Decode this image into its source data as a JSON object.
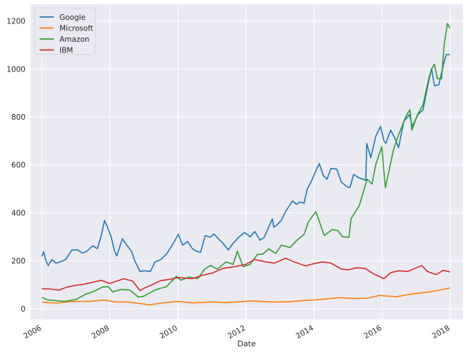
{
  "chart_data": {
    "type": "line",
    "title": "",
    "xlabel": "Date",
    "ylabel": "",
    "xlim": [
      "2005-09-01",
      "2018-05-15"
    ],
    "ylim": [
      -45,
      1270
    ],
    "x_ticks": [
      "2006",
      "2008",
      "2010",
      "2012",
      "2014",
      "2016",
      "2018"
    ],
    "y_ticks": [
      0,
      200,
      400,
      600,
      800,
      1000,
      1200
    ],
    "grid": true,
    "legend_position": "top-left",
    "series": [
      {
        "name": "Google",
        "color": "#1f77b4",
        "points": [
          [
            "2006-01-03",
            218
          ],
          [
            "2006-01-20",
            238
          ],
          [
            "2006-02-15",
            200
          ],
          [
            "2006-03-10",
            180
          ],
          [
            "2006-04-20",
            205
          ],
          [
            "2006-06-01",
            190
          ],
          [
            "2006-07-15",
            195
          ],
          [
            "2006-09-15",
            205
          ],
          [
            "2006-11-20",
            245
          ],
          [
            "2007-01-20",
            245
          ],
          [
            "2007-03-15",
            232
          ],
          [
            "2007-05-01",
            240
          ],
          [
            "2007-07-01",
            262
          ],
          [
            "2007-08-20",
            250
          ],
          [
            "2007-10-01",
            305
          ],
          [
            "2007-11-05",
            368
          ],
          [
            "2007-12-01",
            345
          ],
          [
            "2008-01-15",
            300
          ],
          [
            "2008-02-20",
            240
          ],
          [
            "2008-03-15",
            220
          ],
          [
            "2008-05-15",
            292
          ],
          [
            "2008-07-01",
            265
          ],
          [
            "2008-08-20",
            240
          ],
          [
            "2008-09-25",
            200
          ],
          [
            "2008-11-20",
            155
          ],
          [
            "2009-01-05",
            158
          ],
          [
            "2009-03-10",
            155
          ],
          [
            "2009-05-01",
            195
          ],
          [
            "2009-07-01",
            205
          ],
          [
            "2009-09-01",
            228
          ],
          [
            "2009-11-01",
            265
          ],
          [
            "2010-01-05",
            310
          ],
          [
            "2010-02-20",
            265
          ],
          [
            "2010-04-15",
            280
          ],
          [
            "2010-06-01",
            252
          ],
          [
            "2010-07-15",
            240
          ],
          [
            "2010-09-01",
            235
          ],
          [
            "2010-10-20",
            305
          ],
          [
            "2010-12-15",
            298
          ],
          [
            "2011-01-20",
            312
          ],
          [
            "2011-03-15",
            290
          ],
          [
            "2011-05-01",
            272
          ],
          [
            "2011-06-25",
            245
          ],
          [
            "2011-08-10",
            270
          ],
          [
            "2011-10-15",
            298
          ],
          [
            "2011-12-15",
            318
          ],
          [
            "2012-02-15",
            300
          ],
          [
            "2012-04-05",
            322
          ],
          [
            "2012-06-01",
            285
          ],
          [
            "2012-07-15",
            298
          ],
          [
            "2012-09-01",
            340
          ],
          [
            "2012-10-10",
            375
          ],
          [
            "2012-10-25",
            340
          ],
          [
            "2012-12-01",
            350
          ],
          [
            "2013-01-15",
            370
          ],
          [
            "2013-03-01",
            405
          ],
          [
            "2013-05-15",
            450
          ],
          [
            "2013-06-25",
            435
          ],
          [
            "2013-08-01",
            445
          ],
          [
            "2013-09-15",
            440
          ],
          [
            "2013-10-20",
            500
          ],
          [
            "2013-12-01",
            530
          ],
          [
            "2014-01-20",
            575
          ],
          [
            "2014-02-25",
            605
          ],
          [
            "2014-04-10",
            555
          ],
          [
            "2014-05-20",
            540
          ],
          [
            "2014-07-01",
            585
          ],
          [
            "2014-09-01",
            582
          ],
          [
            "2014-10-20",
            528
          ],
          [
            "2014-12-15",
            510
          ],
          [
            "2015-01-20",
            505
          ],
          [
            "2015-03-01",
            560
          ],
          [
            "2015-05-01",
            545
          ],
          [
            "2015-07-10",
            535
          ],
          [
            "2015-07-20",
            690
          ],
          [
            "2015-09-01",
            630
          ],
          [
            "2015-10-25",
            720
          ],
          [
            "2015-12-15",
            760
          ],
          [
            "2016-01-20",
            700
          ],
          [
            "2016-02-10",
            690
          ],
          [
            "2016-04-01",
            745
          ],
          [
            "2016-05-15",
            712
          ],
          [
            "2016-06-25",
            672
          ],
          [
            "2016-08-20",
            780
          ],
          [
            "2016-10-20",
            810
          ],
          [
            "2016-11-20",
            760
          ],
          [
            "2017-01-20",
            810
          ],
          [
            "2017-03-15",
            830
          ],
          [
            "2017-05-15",
            950
          ],
          [
            "2017-06-15",
            1000
          ],
          [
            "2017-07-15",
            930
          ],
          [
            "2017-09-01",
            935
          ],
          [
            "2017-10-27",
            1030
          ],
          [
            "2017-11-20",
            1060
          ],
          [
            "2017-12-29",
            1060
          ]
        ]
      },
      {
        "name": "Microsoft",
        "color": "#ff7f0e",
        "points": [
          [
            "2006-01-03",
            27
          ],
          [
            "2006-06-01",
            23
          ],
          [
            "2006-12-01",
            30
          ],
          [
            "2007-06-01",
            30
          ],
          [
            "2007-11-01",
            36
          ],
          [
            "2008-03-01",
            28
          ],
          [
            "2008-08-01",
            27
          ],
          [
            "2009-01-01",
            19
          ],
          [
            "2009-03-01",
            16
          ],
          [
            "2009-07-01",
            23
          ],
          [
            "2010-01-01",
            30
          ],
          [
            "2010-06-01",
            24
          ],
          [
            "2011-01-01",
            28
          ],
          [
            "2011-06-01",
            25
          ],
          [
            "2012-03-01",
            32
          ],
          [
            "2012-10-01",
            28
          ],
          [
            "2013-03-01",
            28
          ],
          [
            "2013-09-01",
            33
          ],
          [
            "2014-03-01",
            38
          ],
          [
            "2014-10-01",
            46
          ],
          [
            "2015-03-01",
            42
          ],
          [
            "2015-08-01",
            44
          ],
          [
            "2015-12-01",
            55
          ],
          [
            "2016-06-01",
            50
          ],
          [
            "2016-12-01",
            62
          ],
          [
            "2017-06-01",
            70
          ],
          [
            "2017-12-29",
            86
          ]
        ]
      },
      {
        "name": "Amazon",
        "color": "#2ca02c",
        "points": [
          [
            "2006-01-03",
            47
          ],
          [
            "2006-03-01",
            37
          ],
          [
            "2006-06-01",
            33
          ],
          [
            "2006-09-01",
            30
          ],
          [
            "2007-01-01",
            38
          ],
          [
            "2007-04-15",
            60
          ],
          [
            "2007-07-15",
            72
          ],
          [
            "2007-10-15",
            90
          ],
          [
            "2007-12-15",
            92
          ],
          [
            "2008-02-01",
            70
          ],
          [
            "2008-05-01",
            80
          ],
          [
            "2008-08-01",
            78
          ],
          [
            "2008-11-01",
            48
          ],
          [
            "2009-01-01",
            52
          ],
          [
            "2009-05-01",
            78
          ],
          [
            "2009-09-01",
            92
          ],
          [
            "2009-12-15",
            135
          ],
          [
            "2010-02-01",
            118
          ],
          [
            "2010-05-01",
            132
          ],
          [
            "2010-08-01",
            125
          ],
          [
            "2010-10-15",
            165
          ],
          [
            "2010-12-15",
            180
          ],
          [
            "2011-03-01",
            165
          ],
          [
            "2011-06-01",
            195
          ],
          [
            "2011-08-15",
            185
          ],
          [
            "2011-10-01",
            240
          ],
          [
            "2011-12-01",
            175
          ],
          [
            "2012-02-15",
            185
          ],
          [
            "2012-04-30",
            225
          ],
          [
            "2012-07-01",
            228
          ],
          [
            "2012-09-01",
            250
          ],
          [
            "2012-11-15",
            230
          ],
          [
            "2013-01-15",
            265
          ],
          [
            "2013-04-15",
            255
          ],
          [
            "2013-07-01",
            285
          ],
          [
            "2013-09-15",
            310
          ],
          [
            "2013-11-01",
            362
          ],
          [
            "2014-01-20",
            405
          ],
          [
            "2014-03-01",
            360
          ],
          [
            "2014-04-20",
            305
          ],
          [
            "2014-07-15",
            330
          ],
          [
            "2014-09-15",
            325
          ],
          [
            "2014-11-01",
            300
          ],
          [
            "2015-01-10",
            298
          ],
          [
            "2015-02-01",
            375
          ],
          [
            "2015-04-30",
            430
          ],
          [
            "2015-07-24",
            540
          ],
          [
            "2015-09-15",
            520
          ],
          [
            "2015-10-23",
            600
          ],
          [
            "2015-12-28",
            675
          ],
          [
            "2016-02-05",
            505
          ],
          [
            "2016-04-30",
            660
          ],
          [
            "2016-06-15",
            715
          ],
          [
            "2016-09-15",
            805
          ],
          [
            "2016-10-25",
            830
          ],
          [
            "2016-11-15",
            745
          ],
          [
            "2017-01-15",
            810
          ],
          [
            "2017-03-15",
            850
          ],
          [
            "2017-05-15",
            960
          ],
          [
            "2017-06-15",
            1000
          ],
          [
            "2017-07-15",
            1020
          ],
          [
            "2017-08-15",
            960
          ],
          [
            "2017-09-30",
            960
          ],
          [
            "2017-10-27",
            1100
          ],
          [
            "2017-12-01",
            1190
          ],
          [
            "2017-12-29",
            1170
          ]
        ]
      },
      {
        "name": "IBM",
        "color": "#d62728",
        "points": [
          [
            "2006-01-03",
            83
          ],
          [
            "2006-04-01",
            82
          ],
          [
            "2006-07-01",
            77
          ],
          [
            "2006-10-01",
            90
          ],
          [
            "2007-01-01",
            97
          ],
          [
            "2007-04-01",
            102
          ],
          [
            "2007-07-01",
            110
          ],
          [
            "2007-10-01",
            118
          ],
          [
            "2008-01-01",
            105
          ],
          [
            "2008-03-01",
            113
          ],
          [
            "2008-06-01",
            125
          ],
          [
            "2008-09-01",
            115
          ],
          [
            "2008-11-20",
            75
          ],
          [
            "2009-01-01",
            85
          ],
          [
            "2009-04-01",
            100
          ],
          [
            "2009-07-01",
            117
          ],
          [
            "2009-10-01",
            122
          ],
          [
            "2010-01-01",
            130
          ],
          [
            "2010-06-01",
            125
          ],
          [
            "2010-10-01",
            140
          ],
          [
            "2011-01-01",
            148
          ],
          [
            "2011-05-01",
            168
          ],
          [
            "2011-09-01",
            175
          ],
          [
            "2012-01-01",
            185
          ],
          [
            "2012-04-01",
            205
          ],
          [
            "2012-08-01",
            195
          ],
          [
            "2012-11-01",
            190
          ],
          [
            "2013-03-01",
            210
          ],
          [
            "2013-06-01",
            195
          ],
          [
            "2013-10-01",
            178
          ],
          [
            "2014-01-01",
            188
          ],
          [
            "2014-04-01",
            195
          ],
          [
            "2014-07-01",
            190
          ],
          [
            "2014-10-20",
            165
          ],
          [
            "2015-01-01",
            162
          ],
          [
            "2015-04-01",
            170
          ],
          [
            "2015-07-01",
            168
          ],
          [
            "2015-10-01",
            145
          ],
          [
            "2016-01-20",
            125
          ],
          [
            "2016-04-01",
            150
          ],
          [
            "2016-07-01",
            158
          ],
          [
            "2016-10-01",
            155
          ],
          [
            "2017-01-01",
            170
          ],
          [
            "2017-03-01",
            180
          ],
          [
            "2017-05-01",
            155
          ],
          [
            "2017-08-01",
            142
          ],
          [
            "2017-10-20",
            160
          ],
          [
            "2017-12-29",
            153
          ]
        ]
      }
    ]
  }
}
